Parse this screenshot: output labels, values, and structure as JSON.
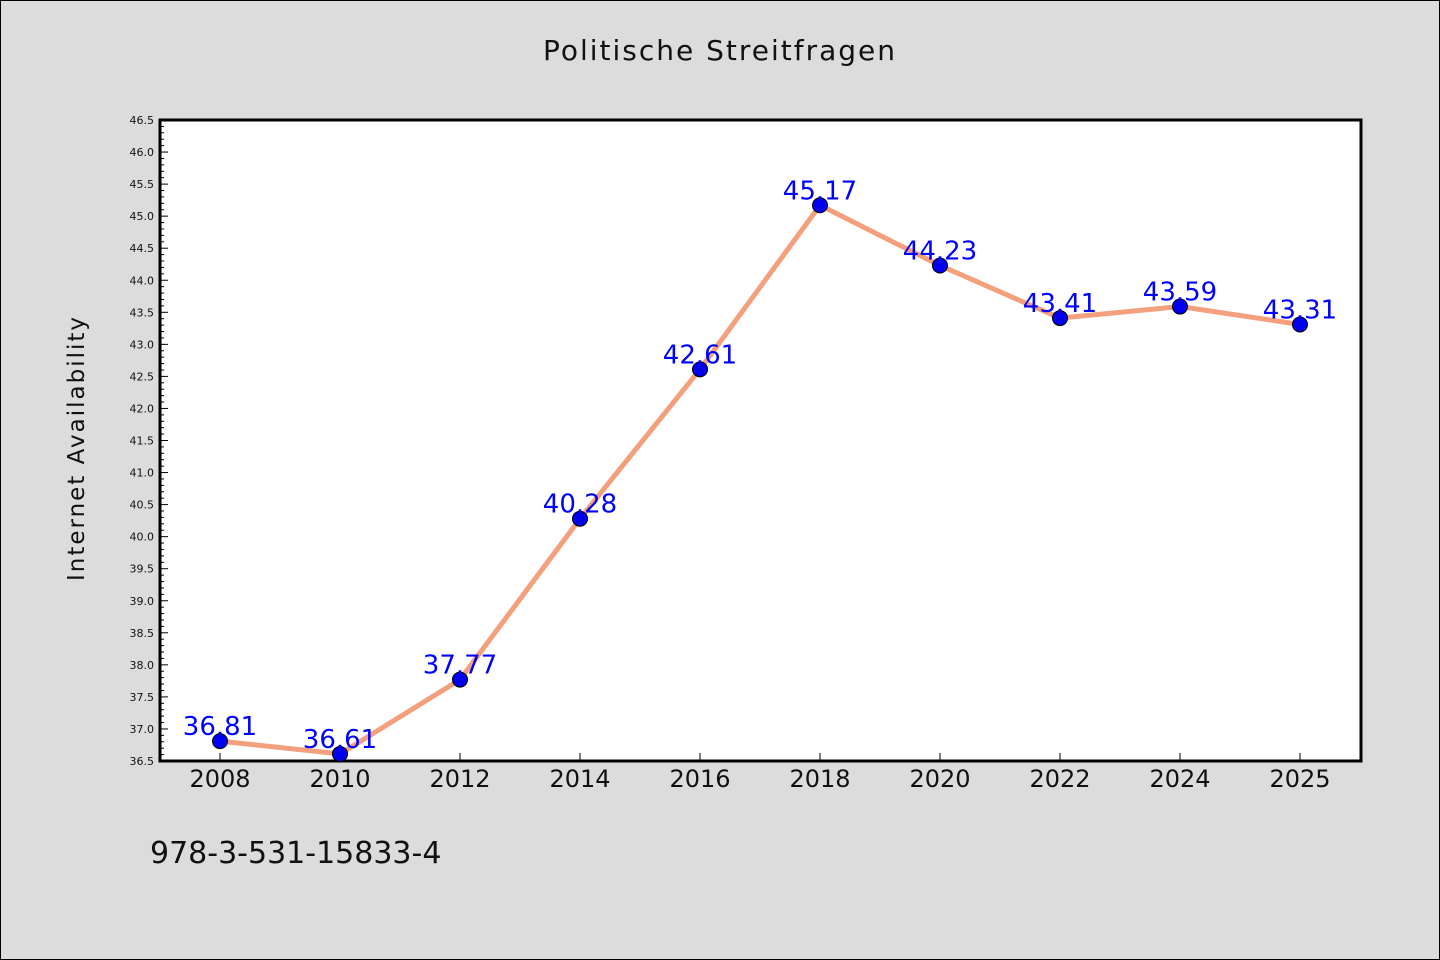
{
  "chart_data": {
    "type": "line",
    "title": "Politische Streitfragen",
    "xlabel": "",
    "ylabel": "Internet Availability",
    "categories": [
      "2008",
      "2010",
      "2012",
      "2014",
      "2016",
      "2018",
      "2020",
      "2022",
      "2024",
      "2025"
    ],
    "series": [
      {
        "values": [
          36.81,
          36.61,
          37.77,
          40.28,
          42.61,
          45.17,
          44.23,
          43.41,
          43.59,
          43.31
        ]
      }
    ],
    "data_labels": [
      "36.81",
      "36.61",
      "37.77",
      "40.28",
      "42.61",
      "45.17",
      "44.23",
      "43.41",
      "43.59",
      "43.31"
    ],
    "ylim": [
      36.5,
      46.5
    ],
    "yticks": [
      "36.5",
      "37.0",
      "37.5",
      "38.0",
      "38.5",
      "39.0",
      "39.5",
      "40.0",
      "40.5",
      "41.0",
      "41.5",
      "42.0",
      "42.5",
      "43.0",
      "43.5",
      "44.0",
      "44.5",
      "45.0",
      "45.5",
      "46.0",
      "46.5"
    ],
    "grid": false,
    "colors": {
      "line": "#f4a07c",
      "marker": "#0000ee",
      "label": "#0000ff",
      "background": "#dcdcdc",
      "plot_background": "#ffffff"
    }
  },
  "footer": {
    "isbn": "978-3-531-15833-4"
  }
}
